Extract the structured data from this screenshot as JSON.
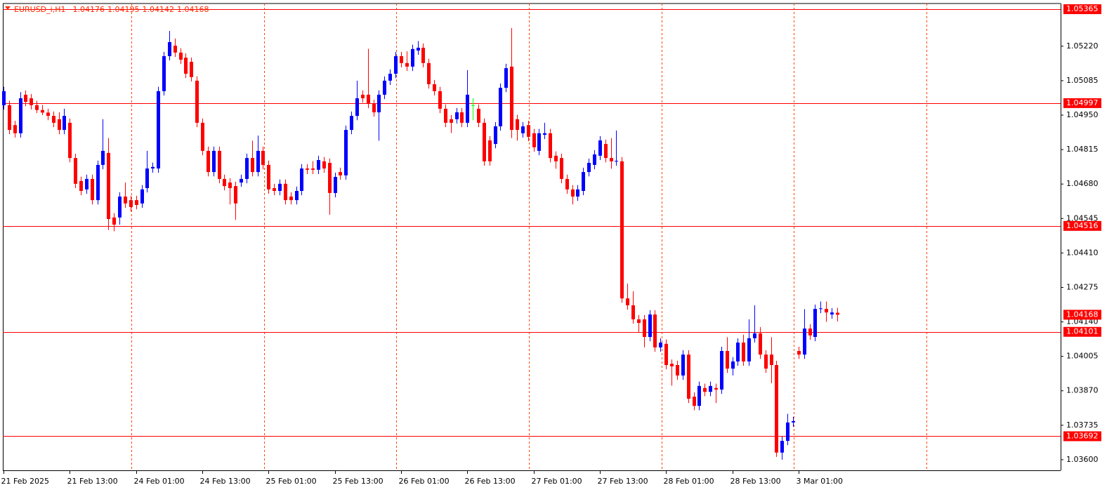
{
  "chart_data": {
    "type": "candlestick",
    "title": "EURUSD_i,H1",
    "header_values": [
      1.04176,
      1.04195,
      1.04142,
      1.04168
    ],
    "bull_color": "#0000ff",
    "bear_color": "#ff0000",
    "doji_color": "#00ff00",
    "level_color": "#ff0000",
    "ylim": [
      1.03564,
      1.05401
    ],
    "yticks": [
      {
        "value": 1.0522,
        "label": "1.05220"
      },
      {
        "value": 1.05085,
        "label": "1.05085"
      },
      {
        "value": 1.0495,
        "label": "1.04950"
      },
      {
        "value": 1.04815,
        "label": "1.04815"
      },
      {
        "value": 1.0468,
        "label": "1.04680"
      },
      {
        "value": 1.04545,
        "label": "1.04545"
      },
      {
        "value": 1.0441,
        "label": "1.04410"
      },
      {
        "value": 1.04275,
        "label": "1.04275"
      },
      {
        "value": 1.0414,
        "label": "1.04140"
      },
      {
        "value": 1.04005,
        "label": "1.04005"
      },
      {
        "value": 1.0387,
        "label": "1.03870"
      },
      {
        "value": 1.03735,
        "label": "1.03735"
      },
      {
        "value": 1.036,
        "label": "1.03600"
      }
    ],
    "levels": [
      {
        "value": 1.05365,
        "label": "1.05365"
      },
      {
        "value": 1.04997,
        "label": "1.04997"
      },
      {
        "value": 1.04516,
        "label": "1.04516"
      },
      {
        "value": 1.04101,
        "label": "1.04101"
      },
      {
        "value": 1.03692,
        "label": "1.03692"
      }
    ],
    "price_label": {
      "value": 1.04168,
      "label": "1.04168"
    },
    "categories": [
      "21 Feb 2025",
      null,
      null,
      null,
      null,
      null,
      null,
      null,
      null,
      null,
      null,
      null,
      "21 Feb 13:00",
      null,
      null,
      null,
      null,
      null,
      null,
      null,
      null,
      null,
      null,
      null,
      "24 Feb 01:00",
      null,
      null,
      null,
      null,
      null,
      null,
      null,
      null,
      null,
      null,
      null,
      "24 Feb 13:00",
      null,
      null,
      null,
      null,
      null,
      null,
      null,
      null,
      null,
      null,
      null,
      "25 Feb 01:00",
      null,
      null,
      null,
      null,
      null,
      null,
      null,
      null,
      null,
      null,
      null,
      "25 Feb 13:00",
      null,
      null,
      null,
      null,
      null,
      null,
      null,
      null,
      null,
      null,
      null,
      "26 Feb 01:00",
      null,
      null,
      null,
      null,
      null,
      null,
      null,
      null,
      null,
      null,
      null,
      "26 Feb 13:00",
      null,
      null,
      null,
      null,
      null,
      null,
      null,
      null,
      null,
      null,
      null,
      "27 Feb 01:00",
      null,
      null,
      null,
      null,
      null,
      null,
      null,
      null,
      null,
      null,
      null,
      "27 Feb 13:00",
      null,
      null,
      null,
      null,
      null,
      null,
      null,
      null,
      null,
      null,
      null,
      "28 Feb 01:00",
      null,
      null,
      null,
      null,
      null,
      null,
      null,
      null,
      null,
      null,
      null,
      "28 Feb 13:00",
      null,
      null,
      null,
      null,
      null,
      null,
      null,
      null,
      null,
      null,
      null,
      "3 Mar 01:00",
      null,
      null,
      null,
      null,
      null,
      null,
      null
    ],
    "ohlc": [
      [
        1.04989,
        1.05061,
        1.04972,
        1.05044
      ],
      [
        1.04989,
        1.05006,
        1.04875,
        1.04892
      ],
      [
        1.04911,
        1.04928,
        1.04862,
        1.04879
      ],
      [
        1.04879,
        1.0504,
        1.04862,
        1.05016
      ],
      [
        1.0503,
        1.05047,
        1.04985,
        1.05002
      ],
      [
        1.05016,
        1.05033,
        1.04972,
        1.04989
      ],
      [
        1.04989,
        1.05006,
        1.04958,
        1.0497
      ],
      [
        1.0497,
        1.0499,
        1.0495,
        1.0496
      ],
      [
        1.0496,
        1.04975,
        1.0493,
        1.04947
      ],
      [
        1.04947,
        1.04964,
        1.04903,
        1.0492
      ],
      [
        1.04934,
        1.04961,
        1.04875,
        1.04892
      ],
      [
        1.04892,
        1.04975,
        1.04875,
        1.04947
      ],
      [
        1.0492,
        1.04937,
        1.04765,
        1.04782
      ],
      [
        1.04782,
        1.04799,
        1.04664,
        1.04681
      ],
      [
        1.04692,
        1.04709,
        1.04636,
        1.04653
      ],
      [
        1.04659,
        1.04717,
        1.04642,
        1.047
      ],
      [
        1.047,
        1.04717,
        1.046,
        1.04617
      ],
      [
        1.04617,
        1.04772,
        1.046,
        1.04755
      ],
      [
        1.04755,
        1.04934,
        1.04738,
        1.0481
      ],
      [
        1.04802,
        1.0486,
        1.045,
        1.04543
      ],
      [
        1.04549,
        1.04566,
        1.04495,
        1.04521
      ],
      [
        1.04549,
        1.04648,
        1.04521,
        1.04631
      ],
      [
        1.04631,
        1.04686,
        1.04587,
        1.04604
      ],
      [
        1.04617,
        1.04634,
        1.04573,
        1.0459
      ],
      [
        1.04617,
        1.04634,
        1.04581,
        1.04598
      ],
      [
        1.04604,
        1.04676,
        1.04587,
        1.04659
      ],
      [
        1.04664,
        1.0481,
        1.04647,
        1.04741
      ],
      [
        1.04741,
        1.04764,
        1.04724,
        1.04747
      ],
      [
        1.04741,
        1.05061,
        1.04724,
        1.05044
      ],
      [
        1.05044,
        1.05198,
        1.05027,
        1.05181
      ],
      [
        1.05181,
        1.0528,
        1.05164,
        1.05236
      ],
      [
        1.05222,
        1.0525,
        1.05178,
        1.05195
      ],
      [
        1.05195,
        1.05212,
        1.0515,
        1.05167
      ],
      [
        1.05175,
        1.05192,
        1.05095,
        1.05112
      ],
      [
        1.05159,
        1.05176,
        1.05082,
        1.05099
      ],
      [
        1.05085,
        1.05102,
        1.04903,
        1.0492
      ],
      [
        1.0492,
        1.04937,
        1.04793,
        1.0481
      ],
      [
        1.0481,
        1.04827,
        1.0471,
        1.04727
      ],
      [
        1.04727,
        1.04827,
        1.0471,
        1.0481
      ],
      [
        1.0481,
        1.04827,
        1.04683,
        1.047
      ],
      [
        1.047,
        1.04717,
        1.04655,
        1.04672
      ],
      [
        1.04686,
        1.04703,
        1.046,
        1.04664
      ],
      [
        1.04672,
        1.04689,
        1.0454,
        1.04604
      ],
      [
        1.04686,
        1.04717,
        1.04669,
        1.047
      ],
      [
        1.047,
        1.04799,
        1.04683,
        1.04782
      ],
      [
        1.04782,
        1.0485,
        1.0471,
        1.04727
      ],
      [
        1.04727,
        1.0487,
        1.0471,
        1.0481
      ],
      [
        1.0481,
        1.04827,
        1.04738,
        1.04755
      ],
      [
        1.04755,
        1.04772,
        1.04642,
        1.04659
      ],
      [
        1.04664,
        1.04681,
        1.04636,
        1.04653
      ],
      [
        1.04653,
        1.04698,
        1.04636,
        1.04681
      ],
      [
        1.04681,
        1.04698,
        1.046,
        1.04617
      ],
      [
        1.04631,
        1.04648,
        1.046,
        1.04617
      ],
      [
        1.04617,
        1.0467,
        1.046,
        1.04653
      ],
      [
        1.04653,
        1.04758,
        1.04636,
        1.04741
      ],
      [
        1.04741,
        1.04758,
        1.04719,
        1.04736
      ],
      [
        1.04741,
        1.0477,
        1.04719,
        1.04736
      ],
      [
        1.04736,
        1.04791,
        1.04719,
        1.04774
      ],
      [
        1.04769,
        1.04786,
        1.04724,
        1.04741
      ],
      [
        1.04763,
        1.0478,
        1.0456,
        1.04645
      ],
      [
        1.04645,
        1.04725,
        1.04628,
        1.04708
      ],
      [
        1.04727,
        1.04744,
        1.04697,
        1.04714
      ],
      [
        1.04714,
        1.04909,
        1.04697,
        1.04892
      ],
      [
        1.04892,
        1.04964,
        1.04875,
        1.04947
      ],
      [
        1.04947,
        1.05085,
        1.0493,
        1.05016
      ],
      [
        1.0503,
        1.05047,
        1.04999,
        1.05016
      ],
      [
        1.0503,
        1.0521,
        1.04977,
        1.04994
      ],
      [
        1.04994,
        1.05011,
        1.04944,
        1.04961
      ],
      [
        1.04961,
        1.05047,
        1.0485,
        1.0503
      ],
      [
        1.0503,
        1.05102,
        1.05013,
        1.05085
      ],
      [
        1.05085,
        1.05129,
        1.05068,
        1.05112
      ],
      [
        1.05112,
        1.05198,
        1.05095,
        1.05181
      ],
      [
        1.05181,
        1.05198,
        1.05137,
        1.05154
      ],
      [
        1.05154,
        1.052,
        1.05123,
        1.0514
      ],
      [
        1.0514,
        1.05226,
        1.05123,
        1.05209
      ],
      [
        1.05203,
        1.0524,
        1.05186,
        1.05214
      ],
      [
        1.05214,
        1.05231,
        1.05137,
        1.05154
      ],
      [
        1.05154,
        1.05171,
        1.05054,
        1.05071
      ],
      [
        1.05071,
        1.05088,
        1.05027,
        1.05044
      ],
      [
        1.05044,
        1.05061,
        1.04958,
        1.04975
      ],
      [
        1.04975,
        1.04992,
        1.04903,
        1.0492
      ],
      [
        1.04934,
        1.04951,
        1.0488,
        1.0492
      ],
      [
        1.04934,
        1.04978,
        1.04917,
        1.04961
      ],
      [
        1.04961,
        1.04978,
        1.04903,
        1.0492
      ],
      [
        1.0492,
        1.05126,
        1.04903,
        1.0503
      ],
      [
        1.04989,
        1.05016,
        1.0493,
        1.04989
      ],
      [
        1.04975,
        1.04992,
        1.04903,
        1.0492
      ],
      [
        1.0492,
        1.04937,
        1.04752,
        1.04769
      ],
      [
        1.04851,
        1.04868,
        1.04752,
        1.04769
      ],
      [
        1.04837,
        1.04923,
        1.0482,
        1.04906
      ],
      [
        1.04906,
        1.05074,
        1.04889,
        1.05057
      ],
      [
        1.05057,
        1.05151,
        1.0504,
        1.05134
      ],
      [
        1.0514,
        1.05291,
        1.0486,
        1.04892
      ],
      [
        1.04934,
        1.04951,
        1.0485,
        1.04892
      ],
      [
        1.04879,
        1.04923,
        1.04862,
        1.04906
      ],
      [
        1.04911,
        1.04928,
        1.04848,
        1.04865
      ],
      [
        1.04879,
        1.04896,
        1.04807,
        1.04824
      ],
      [
        1.0481,
        1.04896,
        1.04793,
        1.04879
      ],
      [
        1.04873,
        1.0492,
        1.04856,
        1.04879
      ],
      [
        1.04879,
        1.04896,
        1.04765,
        1.04782
      ],
      [
        1.04791,
        1.04808,
        1.0474,
        1.04769
      ],
      [
        1.04782,
        1.04799,
        1.04683,
        1.047
      ],
      [
        1.047,
        1.04717,
        1.04642,
        1.04659
      ],
      [
        1.04659,
        1.04676,
        1.046,
        1.04631
      ],
      [
        1.04631,
        1.04676,
        1.04614,
        1.04659
      ],
      [
        1.04653,
        1.04744,
        1.04636,
        1.04727
      ],
      [
        1.04727,
        1.0478,
        1.0471,
        1.04763
      ],
      [
        1.04755,
        1.04813,
        1.04738,
        1.04796
      ],
      [
        1.04791,
        1.04868,
        1.04774,
        1.04851
      ],
      [
        1.04837,
        1.04854,
        1.04765,
        1.04782
      ],
      [
        1.04782,
        1.0486,
        1.0474,
        1.04769
      ],
      [
        1.04769,
        1.0489,
        1.04752,
        1.04771
      ],
      [
        1.04769,
        1.04786,
        1.04215,
        1.04232
      ],
      [
        1.04232,
        1.0429,
        1.04188,
        1.04205
      ],
      [
        1.04205,
        1.0426,
        1.04133,
        1.0415
      ],
      [
        1.0415,
        1.04167,
        1.041,
        1.04136
      ],
      [
        1.0415,
        1.04167,
        1.0404,
        1.04081
      ],
      [
        1.04081,
        1.04186,
        1.04064,
        1.04169
      ],
      [
        1.04169,
        1.04186,
        1.04023,
        1.0404
      ],
      [
        1.0404,
        1.04076,
        1.04023,
        1.04059
      ],
      [
        1.04054,
        1.04071,
        1.03954,
        1.03971
      ],
      [
        1.03976,
        1.03993,
        1.0389,
        1.03966
      ],
      [
        1.03971,
        1.03988,
        1.03913,
        1.0393
      ],
      [
        1.0393,
        1.04029,
        1.03913,
        1.04012
      ],
      [
        1.04012,
        1.04029,
        1.03822,
        1.03839
      ],
      [
        1.03847,
        1.03864,
        1.03794,
        1.03811
      ],
      [
        1.03811,
        1.03906,
        1.03794,
        1.03889
      ],
      [
        1.03881,
        1.03898,
        1.03849,
        1.03866
      ],
      [
        1.03866,
        1.03906,
        1.03849,
        1.03889
      ],
      [
        1.03881,
        1.03898,
        1.03822,
        1.03875
      ],
      [
        1.03875,
        1.04043,
        1.03858,
        1.04026
      ],
      [
        1.04026,
        1.0408,
        1.0394,
        1.03957
      ],
      [
        1.03957,
        1.04002,
        1.0393,
        1.03985
      ],
      [
        1.03985,
        1.04076,
        1.03968,
        1.04059
      ],
      [
        1.04059,
        1.0409,
        1.03968,
        1.03985
      ],
      [
        1.03985,
        1.0415,
        1.03968,
        1.04076
      ],
      [
        1.04076,
        1.04205,
        1.04059,
        1.04095
      ],
      [
        1.04095,
        1.0412,
        1.03995,
        1.04012
      ],
      [
        1.04012,
        1.04029,
        1.0394,
        1.03957
      ],
      [
        1.04012,
        1.0408,
        1.039,
        1.03971
      ],
      [
        1.03971,
        1.03988,
        1.03611,
        1.03628
      ],
      [
        1.03628,
        1.03691,
        1.036,
        1.03674
      ],
      [
        1.03674,
        1.0378,
        1.03657,
        1.03746
      ],
      [
        1.03746,
        1.03768,
        1.03729,
        1.03751
      ],
      [
        1.04026,
        1.04043,
        1.03995,
        1.04012
      ],
      [
        1.04012,
        1.0419,
        1.03995,
        1.04114
      ],
      [
        1.04114,
        1.04131,
        1.0407,
        1.04087
      ],
      [
        1.04081,
        1.04208,
        1.04064,
        1.04191
      ],
      [
        1.04191,
        1.0422,
        1.04174,
        1.04193
      ],
      [
        1.04191,
        1.0422,
        1.0414,
        1.04177
      ],
      [
        1.04169,
        1.04194,
        1.04152,
        1.04177
      ],
      [
        1.04176,
        1.04195,
        1.04142,
        1.04168
      ]
    ]
  }
}
